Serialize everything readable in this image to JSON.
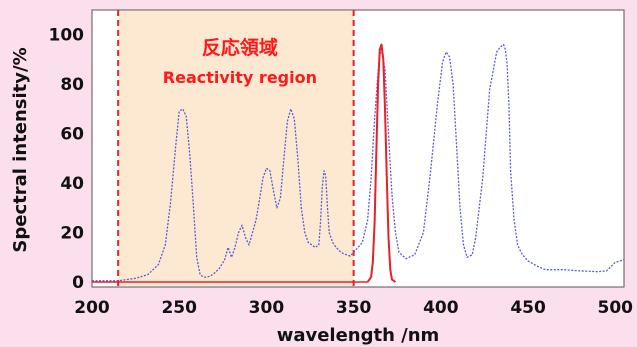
{
  "chart_data": {
    "type": "line",
    "xlabel": "wavelength /nm",
    "ylabel": "Spectral intensity/%",
    "xlim": [
      200,
      505
    ],
    "ylim": [
      -2,
      110
    ],
    "xticks": [
      200,
      250,
      300,
      350,
      400,
      450,
      500
    ],
    "yticks": [
      0,
      20,
      40,
      60,
      80,
      100
    ],
    "grid": false,
    "legend": "none",
    "region": {
      "x_start": 215,
      "x_end": 350,
      "label_ja": "反応領域",
      "label_en": "Reactivity region",
      "fill_color": "#fde9d2",
      "border_color": "#e8202a"
    },
    "series": [
      {
        "style": "dotted",
        "color": "#5b5bd6",
        "x": [
          200,
          215,
          225,
          232,
          238,
          242,
          245,
          248,
          250,
          252,
          254,
          256,
          258,
          260,
          262,
          264,
          266,
          268,
          270,
          273,
          276,
          278,
          280,
          282,
          284,
          286,
          288,
          290,
          292,
          294,
          296,
          298,
          300,
          302,
          304,
          306,
          308,
          310,
          312,
          314,
          316,
          318,
          320,
          322,
          324,
          326,
          328,
          330,
          331,
          332,
          333,
          334,
          335,
          336,
          338,
          340,
          342,
          344,
          346,
          348,
          350,
          355,
          358,
          360,
          362,
          364,
          365,
          366,
          368,
          370,
          372,
          374,
          376,
          380,
          385,
          390,
          394,
          398,
          401,
          403,
          405,
          407,
          409,
          411,
          413,
          415,
          418,
          420,
          424,
          428,
          432,
          434,
          436,
          437,
          438,
          439,
          440,
          442,
          444,
          446,
          448,
          450,
          455,
          460,
          470,
          480,
          490,
          495,
          500,
          505
        ],
        "y": [
          0.5,
          0.5,
          1.5,
          3,
          7,
          15,
          32,
          55,
          69,
          70,
          67,
          52,
          32,
          10,
          3,
          2,
          2,
          2.5,
          3.5,
          5.5,
          9,
          14,
          10,
          14,
          20,
          23,
          18,
          15,
          20,
          25,
          33,
          42,
          46,
          45,
          37,
          30,
          34,
          50,
          65,
          70,
          66,
          50,
          30,
          20,
          16,
          15,
          14,
          15,
          24,
          38,
          45,
          43,
          30,
          20,
          16,
          14,
          12.5,
          11.5,
          11,
          10.5,
          12,
          16,
          25,
          42,
          66,
          85,
          92,
          94,
          86,
          60,
          35,
          20,
          12,
          9.5,
          11,
          20,
          44,
          72,
          89,
          93,
          91,
          80,
          55,
          30,
          15,
          10,
          11,
          18,
          42,
          78,
          93,
          95,
          96,
          94,
          88,
          72,
          45,
          25,
          15,
          12,
          10,
          8.5,
          6.5,
          5,
          5,
          4.5,
          4.2,
          4.5,
          8,
          9
        ]
      },
      {
        "style": "solid",
        "color": "#e8202a",
        "x": [
          358,
          360,
          361,
          362,
          363,
          364,
          365,
          366,
          367,
          368,
          369,
          370,
          371,
          372,
          374
        ],
        "y": [
          0,
          2,
          8,
          24,
          52,
          80,
          94,
          96,
          90,
          70,
          42,
          18,
          5,
          1,
          0
        ]
      }
    ]
  }
}
